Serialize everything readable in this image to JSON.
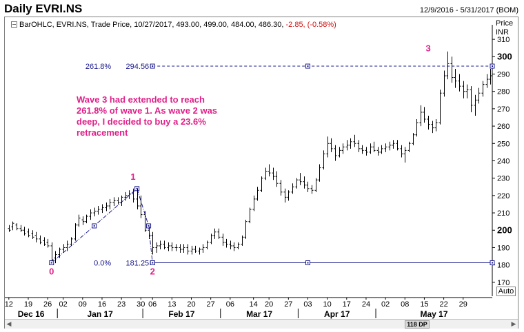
{
  "header": {
    "title": "Daily EVRI.NS",
    "date_range": "12/9/2016 - 5/31/2017 (BOM)"
  },
  "legend": {
    "prefix": "BarOHLC, EVRI.NS, Trade Price, 10/27/2017, 493.00, 499.00, 484.00, 486.30,",
    "change": "-2.85, (-0.58%)"
  },
  "price_axis": {
    "label_line1": "Price",
    "label_line2": "INR"
  },
  "note": {
    "text": "Wave 3 had extended to reach 261.8% of wave 1. As wave 2 was deep, I decided to buy a 23.6% retracement"
  },
  "controls": {
    "auto_label": "Auto",
    "scroll_thumb_label": "118 DP",
    "scroll_left": "◀",
    "scroll_right": "▶"
  },
  "colors": {
    "bars": "#000000",
    "annotation": "#e0208a",
    "fib_line": "#1a1a8c",
    "legend_negative": "#d01010"
  },
  "chart_data": {
    "type": "bar",
    "title": "Daily EVRI.NS",
    "ylabel": "Price INR",
    "ylim": [
      162,
      316
    ],
    "y_ticks": [
      170,
      180,
      190,
      200,
      210,
      220,
      230,
      240,
      250,
      260,
      270,
      280,
      290,
      300,
      310
    ],
    "y_ticks_bold": [
      200,
      300
    ],
    "x_days": [
      {
        "label": "12",
        "month": "Dec 16"
      },
      {
        "label": "19"
      },
      {
        "label": "26"
      },
      {
        "label": "02",
        "month": "Jan 17"
      },
      {
        "label": "09"
      },
      {
        "label": "16"
      },
      {
        "label": "23"
      },
      {
        "label": "30"
      },
      {
        "label": "06",
        "month": "Feb 17"
      },
      {
        "label": "13"
      },
      {
        "label": "20"
      },
      {
        "label": "27"
      },
      {
        "label": "06",
        "month": "Mar 17"
      },
      {
        "label": "14"
      },
      {
        "label": "20"
      },
      {
        "label": "27"
      },
      {
        "label": "03",
        "month": "Apr 17"
      },
      {
        "label": "10"
      },
      {
        "label": "17"
      },
      {
        "label": "24"
      },
      {
        "label": "02",
        "month": "May 17"
      },
      {
        "label": "08"
      },
      {
        "label": "15"
      },
      {
        "label": "22"
      },
      {
        "label": "29"
      }
    ],
    "months": [
      "Dec 16",
      "Jan 17",
      "Feb 17",
      "Mar 17",
      "Apr 17",
      "May 17"
    ],
    "ohlc": [
      [
        201,
        203,
        199,
        200
      ],
      [
        202,
        205,
        200,
        204
      ],
      [
        203,
        204,
        200,
        201
      ],
      [
        201,
        203,
        199,
        200
      ],
      [
        200,
        202,
        197,
        198
      ],
      [
        199,
        201,
        196,
        197
      ],
      [
        198,
        200,
        195,
        196
      ],
      [
        197,
        199,
        193,
        195
      ],
      [
        195,
        197,
        192,
        193
      ],
      [
        194,
        196,
        191,
        192
      ],
      [
        193,
        195,
        190,
        191
      ],
      [
        191,
        193,
        182,
        183
      ],
      [
        184,
        188,
        181,
        186
      ],
      [
        186,
        190,
        184,
        189
      ],
      [
        189,
        192,
        187,
        190
      ],
      [
        190,
        194,
        188,
        192
      ],
      [
        192,
        196,
        191,
        195
      ],
      [
        195,
        204,
        194,
        203
      ],
      [
        203,
        209,
        202,
        207
      ],
      [
        206,
        208,
        203,
        205
      ],
      [
        205,
        209,
        204,
        208
      ],
      [
        208,
        212,
        206,
        210
      ],
      [
        210,
        213,
        208,
        211
      ],
      [
        211,
        214,
        209,
        212
      ],
      [
        212,
        215,
        210,
        213
      ],
      [
        213,
        216,
        211,
        214
      ],
      [
        214,
        218,
        212,
        216
      ],
      [
        216,
        219,
        214,
        217
      ],
      [
        217,
        219,
        215,
        216
      ],
      [
        216,
        220,
        214,
        219
      ],
      [
        219,
        222,
        217,
        220
      ],
      [
        220,
        223,
        218,
        221
      ],
      [
        221,
        224,
        216,
        218
      ],
      [
        218,
        224,
        212,
        214
      ],
      [
        214,
        220,
        207,
        209
      ],
      [
        209,
        211,
        199,
        200
      ],
      [
        200,
        202,
        195,
        197
      ],
      [
        197,
        199,
        186,
        190
      ],
      [
        190,
        193,
        187,
        191
      ],
      [
        191,
        194,
        189,
        192
      ],
      [
        192,
        194,
        189,
        190
      ],
      [
        190,
        193,
        188,
        191
      ],
      [
        191,
        193,
        188,
        190
      ],
      [
        190,
        192,
        188,
        190
      ],
      [
        190,
        192,
        187,
        189
      ],
      [
        189,
        192,
        187,
        190
      ],
      [
        190,
        192,
        186,
        188
      ],
      [
        188,
        191,
        186,
        189
      ],
      [
        189,
        191,
        187,
        188
      ],
      [
        188,
        190,
        186,
        189
      ],
      [
        189,
        192,
        187,
        190
      ],
      [
        190,
        194,
        189,
        193
      ],
      [
        193,
        198,
        192,
        197
      ],
      [
        197,
        201,
        195,
        199
      ],
      [
        199,
        201,
        195,
        196
      ],
      [
        196,
        198,
        191,
        193
      ],
      [
        193,
        195,
        190,
        192
      ],
      [
        192,
        194,
        189,
        191
      ],
      [
        191,
        193,
        188,
        190
      ],
      [
        190,
        193,
        189,
        192
      ],
      [
        192,
        197,
        191,
        196
      ],
      [
        196,
        206,
        195,
        205
      ],
      [
        205,
        213,
        204,
        212
      ],
      [
        212,
        220,
        211,
        218
      ],
      [
        218,
        225,
        217,
        223
      ],
      [
        223,
        231,
        222,
        230
      ],
      [
        230,
        236,
        229,
        234
      ],
      [
        234,
        238,
        231,
        233
      ],
      [
        233,
        236,
        229,
        231
      ],
      [
        231,
        234,
        225,
        227
      ],
      [
        227,
        229,
        220,
        222
      ],
      [
        222,
        224,
        216,
        219
      ],
      [
        219,
        223,
        217,
        222
      ],
      [
        222,
        227,
        221,
        225
      ],
      [
        225,
        230,
        224,
        229
      ],
      [
        229,
        233,
        226,
        228
      ],
      [
        228,
        231,
        224,
        226
      ],
      [
        226,
        228,
        222,
        224
      ],
      [
        224,
        226,
        221,
        223
      ],
      [
        223,
        230,
        222,
        229
      ],
      [
        229,
        238,
        228,
        236
      ],
      [
        236,
        246,
        235,
        244
      ],
      [
        244,
        254,
        242,
        250
      ],
      [
        250,
        253,
        245,
        247
      ],
      [
        247,
        249,
        240,
        243
      ],
      [
        243,
        248,
        242,
        246
      ],
      [
        246,
        250,
        244,
        248
      ],
      [
        248,
        252,
        246,
        249
      ],
      [
        249,
        253,
        247,
        251
      ],
      [
        251,
        255,
        248,
        250
      ],
      [
        250,
        252,
        245,
        247
      ],
      [
        247,
        249,
        244,
        246
      ],
      [
        246,
        248,
        243,
        245
      ],
      [
        245,
        250,
        244,
        248
      ],
      [
        248,
        251,
        245,
        246
      ],
      [
        246,
        248,
        243,
        245
      ],
      [
        245,
        249,
        244,
        247
      ],
      [
        247,
        250,
        245,
        248
      ],
      [
        248,
        251,
        246,
        249
      ],
      [
        249,
        252,
        247,
        250
      ],
      [
        250,
        252,
        246,
        247
      ],
      [
        247,
        249,
        242,
        244
      ],
      [
        244,
        248,
        239,
        246
      ],
      [
        246,
        251,
        245,
        250
      ],
      [
        250,
        256,
        249,
        255
      ],
      [
        255,
        264,
        254,
        262
      ],
      [
        262,
        272,
        260,
        268
      ],
      [
        268,
        271,
        262,
        264
      ],
      [
        264,
        266,
        258,
        261
      ],
      [
        261,
        263,
        256,
        259
      ],
      [
        259,
        264,
        257,
        262
      ],
      [
        262,
        281,
        261,
        279
      ],
      [
        279,
        292,
        277,
        289
      ],
      [
        289,
        303,
        287,
        296
      ],
      [
        296,
        300,
        285,
        288
      ],
      [
        288,
        293,
        282,
        286
      ],
      [
        286,
        290,
        280,
        283
      ],
      [
        283,
        286,
        276,
        280
      ],
      [
        280,
        284,
        276,
        281
      ],
      [
        281,
        283,
        268,
        272
      ],
      [
        272,
        278,
        266,
        275
      ],
      [
        275,
        282,
        273,
        279
      ],
      [
        279,
        286,
        277,
        284
      ],
      [
        284,
        290,
        282,
        287
      ],
      [
        287,
        293,
        284,
        289
      ]
    ],
    "day_tick_index": [
      0,
      5,
      10,
      14,
      19,
      24,
      29,
      34,
      37,
      42,
      47,
      52,
      57,
      63,
      67,
      72,
      77,
      82,
      87,
      92,
      97,
      102,
      107,
      112,
      117
    ],
    "month_separator_index": [
      13,
      35,
      55,
      75,
      95
    ],
    "wave_labels": [
      {
        "text": "0",
        "index": 11,
        "price": 176.5
      },
      {
        "text": "1",
        "index": 32,
        "price": 231
      },
      {
        "text": "2",
        "index": 37,
        "price": 176.5
      },
      {
        "text": "3",
        "index": 108,
        "price": 305
      }
    ],
    "wave_path": [
      {
        "index": 11,
        "price": 181.25
      },
      {
        "index": 22,
        "price": 202.5
      },
      {
        "index": 33,
        "price": 224
      },
      {
        "index": 36,
        "price": 202.5
      },
      {
        "index": 37,
        "price": 181.25
      }
    ],
    "fib_levels": [
      {
        "pct_label": "261.8%",
        "price": 294.56,
        "value_label": "294.56",
        "style": "dashed",
        "from_index": 37,
        "mid_index": 77
      },
      {
        "pct_label": "0.0%",
        "price": 181.25,
        "value_label": "181.25",
        "style": "solid",
        "from_index": 37,
        "mid_index": 77
      }
    ]
  }
}
